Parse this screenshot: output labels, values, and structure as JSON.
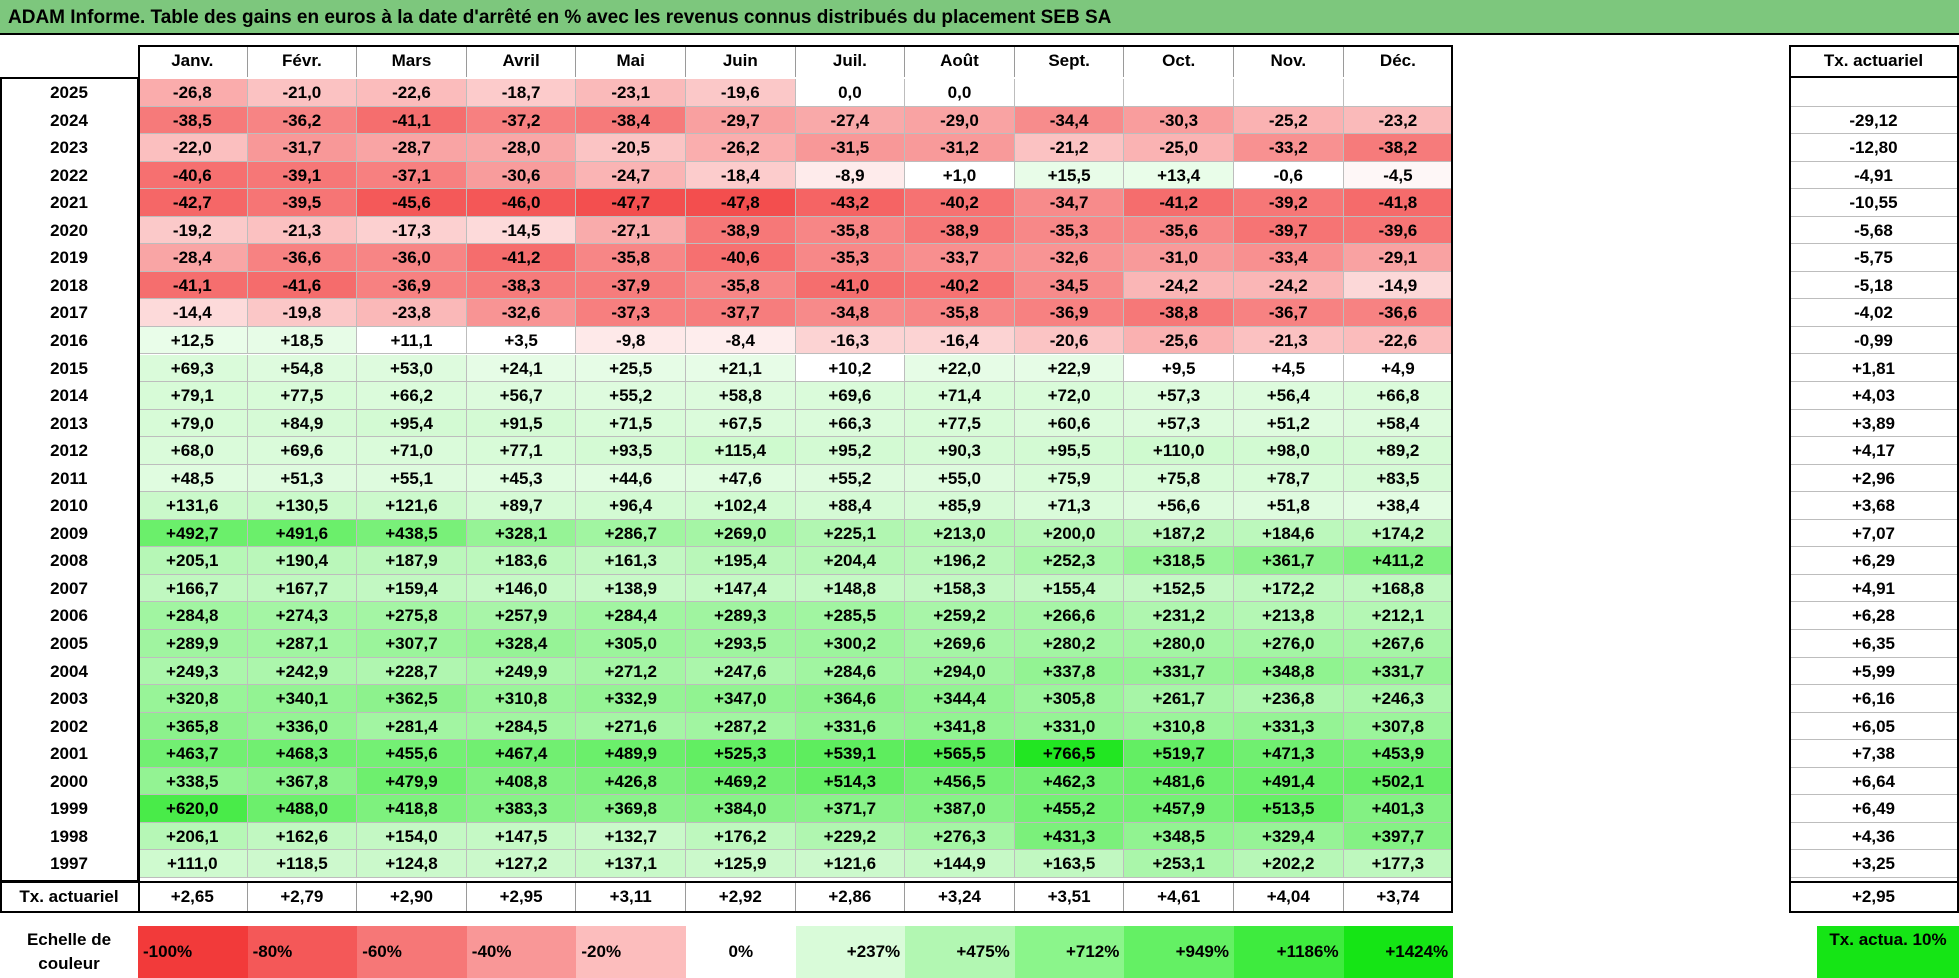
{
  "title": "ADAM Informe. Table des gains en euros à la date d'arrêté en % avec les revenus connus distribués du placement SEB SA",
  "chart_data": {
    "type": "table",
    "title": "ADAM Informe. Table des gains en euros à la date d'arrêté en % avec les revenus connus distribués du placement SEB SA",
    "months": [
      "Janv.",
      "Févr.",
      "Mars",
      "Avril",
      "Mai",
      "Juin",
      "Juil.",
      "Août",
      "Sept.",
      "Oct.",
      "Nov.",
      "Déc."
    ],
    "rate_header": "Tx. actuariel",
    "rows": [
      {
        "year": "2025",
        "values": [
          "-26,8",
          "-21,0",
          "-22,6",
          "-18,7",
          "-23,1",
          "-19,6",
          "0,0",
          "0,0",
          "",
          "",
          "",
          ""
        ],
        "rate": ""
      },
      {
        "year": "2024",
        "values": [
          "-38,5",
          "-36,2",
          "-41,1",
          "-37,2",
          "-38,4",
          "-29,7",
          "-27,4",
          "-29,0",
          "-34,4",
          "-30,3",
          "-25,2",
          "-23,2"
        ],
        "rate": "-29,12"
      },
      {
        "year": "2023",
        "values": [
          "-22,0",
          "-31,7",
          "-28,7",
          "-28,0",
          "-20,5",
          "-26,2",
          "-31,5",
          "-31,2",
          "-21,2",
          "-25,0",
          "-33,2",
          "-38,2"
        ],
        "rate": "-12,80"
      },
      {
        "year": "2022",
        "values": [
          "-40,6",
          "-39,1",
          "-37,1",
          "-30,6",
          "-24,7",
          "-18,4",
          "-8,9",
          "+1,0",
          "+15,5",
          "+13,4",
          "-0,6",
          "-4,5"
        ],
        "rate": "-4,91"
      },
      {
        "year": "2021",
        "values": [
          "-42,7",
          "-39,5",
          "-45,6",
          "-46,0",
          "-47,7",
          "-47,8",
          "-43,2",
          "-40,2",
          "-34,7",
          "-41,2",
          "-39,2",
          "-41,8"
        ],
        "rate": "-10,55"
      },
      {
        "year": "2020",
        "values": [
          "-19,2",
          "-21,3",
          "-17,3",
          "-14,5",
          "-27,1",
          "-38,9",
          "-35,8",
          "-38,9",
          "-35,3",
          "-35,6",
          "-39,7",
          "-39,6"
        ],
        "rate": "-5,68"
      },
      {
        "year": "2019",
        "values": [
          "-28,4",
          "-36,6",
          "-36,0",
          "-41,2",
          "-35,8",
          "-40,6",
          "-35,3",
          "-33,7",
          "-32,6",
          "-31,0",
          "-33,4",
          "-29,1"
        ],
        "rate": "-5,75"
      },
      {
        "year": "2018",
        "values": [
          "-41,1",
          "-41,6",
          "-36,9",
          "-38,3",
          "-37,9",
          "-35,8",
          "-41,0",
          "-40,2",
          "-34,5",
          "-24,2",
          "-24,2",
          "-14,9"
        ],
        "rate": "-5,18"
      },
      {
        "year": "2017",
        "values": [
          "-14,4",
          "-19,8",
          "-23,8",
          "-32,6",
          "-37,3",
          "-37,7",
          "-34,8",
          "-35,8",
          "-36,9",
          "-38,8",
          "-36,7",
          "-36,6"
        ],
        "rate": "-4,02"
      },
      {
        "year": "2016",
        "values": [
          "+12,5",
          "+18,5",
          "+11,1",
          "+3,5",
          "-9,8",
          "-8,4",
          "-16,3",
          "-16,4",
          "-20,6",
          "-25,6",
          "-21,3",
          "-22,6"
        ],
        "rate": "-0,99"
      },
      {
        "year": "2015",
        "values": [
          "+69,3",
          "+54,8",
          "+53,0",
          "+24,1",
          "+25,5",
          "+21,1",
          "+10,2",
          "+22,0",
          "+22,9",
          "+9,5",
          "+4,5",
          "+4,9"
        ],
        "rate": "+1,81"
      },
      {
        "year": "2014",
        "values": [
          "+79,1",
          "+77,5",
          "+66,2",
          "+56,7",
          "+55,2",
          "+58,8",
          "+69,6",
          "+71,4",
          "+72,0",
          "+57,3",
          "+56,4",
          "+66,8"
        ],
        "rate": "+4,03"
      },
      {
        "year": "2013",
        "values": [
          "+79,0",
          "+84,9",
          "+95,4",
          "+91,5",
          "+71,5",
          "+67,5",
          "+66,3",
          "+77,5",
          "+60,6",
          "+57,3",
          "+51,2",
          "+58,4"
        ],
        "rate": "+3,89"
      },
      {
        "year": "2012",
        "values": [
          "+68,0",
          "+69,6",
          "+71,0",
          "+77,1",
          "+93,5",
          "+115,4",
          "+95,2",
          "+90,3",
          "+95,5",
          "+110,0",
          "+98,0",
          "+89,2"
        ],
        "rate": "+4,17"
      },
      {
        "year": "2011",
        "values": [
          "+48,5",
          "+51,3",
          "+55,1",
          "+45,3",
          "+44,6",
          "+47,6",
          "+55,2",
          "+55,0",
          "+75,9",
          "+75,8",
          "+78,7",
          "+83,5"
        ],
        "rate": "+2,96"
      },
      {
        "year": "2010",
        "values": [
          "+131,6",
          "+130,5",
          "+121,6",
          "+89,7",
          "+96,4",
          "+102,4",
          "+88,4",
          "+85,9",
          "+71,3",
          "+56,6",
          "+51,8",
          "+38,4"
        ],
        "rate": "+3,68"
      },
      {
        "year": "2009",
        "values": [
          "+492,7",
          "+491,6",
          "+438,5",
          "+328,1",
          "+286,7",
          "+269,0",
          "+225,1",
          "+213,0",
          "+200,0",
          "+187,2",
          "+184,6",
          "+174,2"
        ],
        "rate": "+7,07"
      },
      {
        "year": "2008",
        "values": [
          "+205,1",
          "+190,4",
          "+187,9",
          "+183,6",
          "+161,3",
          "+195,4",
          "+204,4",
          "+196,2",
          "+252,3",
          "+318,5",
          "+361,7",
          "+411,2"
        ],
        "rate": "+6,29"
      },
      {
        "year": "2007",
        "values": [
          "+166,7",
          "+167,7",
          "+159,4",
          "+146,0",
          "+138,9",
          "+147,4",
          "+148,8",
          "+158,3",
          "+155,4",
          "+152,5",
          "+172,2",
          "+168,8"
        ],
        "rate": "+4,91"
      },
      {
        "year": "2006",
        "values": [
          "+284,8",
          "+274,3",
          "+275,8",
          "+257,9",
          "+284,4",
          "+289,3",
          "+285,5",
          "+259,2",
          "+266,6",
          "+231,2",
          "+213,8",
          "+212,1"
        ],
        "rate": "+6,28"
      },
      {
        "year": "2005",
        "values": [
          "+289,9",
          "+287,1",
          "+307,7",
          "+328,4",
          "+305,0",
          "+293,5",
          "+300,2",
          "+269,6",
          "+280,2",
          "+280,0",
          "+276,0",
          "+267,6"
        ],
        "rate": "+6,35"
      },
      {
        "year": "2004",
        "values": [
          "+249,3",
          "+242,9",
          "+228,7",
          "+249,9",
          "+271,2",
          "+247,6",
          "+284,6",
          "+294,0",
          "+337,8",
          "+331,7",
          "+348,8",
          "+331,7"
        ],
        "rate": "+5,99"
      },
      {
        "year": "2003",
        "values": [
          "+320,8",
          "+340,1",
          "+362,5",
          "+310,8",
          "+332,9",
          "+347,0",
          "+364,6",
          "+344,4",
          "+305,8",
          "+261,7",
          "+236,8",
          "+246,3"
        ],
        "rate": "+6,16"
      },
      {
        "year": "2002",
        "values": [
          "+365,8",
          "+336,0",
          "+281,4",
          "+284,5",
          "+271,6",
          "+287,2",
          "+331,6",
          "+341,8",
          "+331,0",
          "+310,8",
          "+331,3",
          "+307,8"
        ],
        "rate": "+6,05"
      },
      {
        "year": "2001",
        "values": [
          "+463,7",
          "+468,3",
          "+455,6",
          "+467,4",
          "+489,9",
          "+525,3",
          "+539,1",
          "+565,5",
          "+766,5",
          "+519,7",
          "+471,3",
          "+453,9"
        ],
        "rate": "+7,38"
      },
      {
        "year": "2000",
        "values": [
          "+338,5",
          "+367,8",
          "+479,9",
          "+408,8",
          "+426,8",
          "+469,2",
          "+514,3",
          "+456,5",
          "+462,3",
          "+481,6",
          "+491,4",
          "+502,1"
        ],
        "rate": "+6,64"
      },
      {
        "year": "1999",
        "values": [
          "+620,0",
          "+488,0",
          "+418,8",
          "+383,3",
          "+369,8",
          "+384,0",
          "+371,7",
          "+387,0",
          "+455,2",
          "+457,9",
          "+513,5",
          "+401,3"
        ],
        "rate": "+6,49"
      },
      {
        "year": "1998",
        "values": [
          "+206,1",
          "+162,6",
          "+154,0",
          "+147,5",
          "+132,7",
          "+176,2",
          "+229,2",
          "+276,3",
          "+431,3",
          "+348,5",
          "+329,4",
          "+397,7"
        ],
        "rate": "+4,36"
      },
      {
        "year": "1997",
        "values": [
          "+111,0",
          "+118,5",
          "+124,8",
          "+127,2",
          "+137,1",
          "+125,9",
          "+121,6",
          "+144,9",
          "+163,5",
          "+253,1",
          "+202,2",
          "+177,3"
        ],
        "rate": "+3,25"
      }
    ],
    "footer_label": "Tx. actuariel",
    "footer_values": [
      "+2,65",
      "+2,79",
      "+2,90",
      "+2,95",
      "+3,11",
      "+2,92",
      "+2,86",
      "+3,24",
      "+3,51",
      "+4,61",
      "+4,04",
      "+3,74"
    ],
    "footer_rate": "+2,95",
    "scale_label": "Echelle de couleur",
    "scale": [
      {
        "label": "-100%",
        "color": "#f23a3a"
      },
      {
        "label": "-80%",
        "color": "#f45858"
      },
      {
        "label": "-60%",
        "color": "#f67777"
      },
      {
        "label": "-40%",
        "color": "#f99797"
      },
      {
        "label": "-20%",
        "color": "#fcbdbd"
      },
      {
        "label": "0%",
        "color": "#ffffff"
      },
      {
        "label": "+237%",
        "color": "#d9fbd9"
      },
      {
        "label": "+475%",
        "color": "#b2f7b2"
      },
      {
        "label": "+712%",
        "color": "#8bf58b"
      },
      {
        "label": "+949%",
        "color": "#64f064"
      },
      {
        "label": "+1186%",
        "color": "#3eeb3e"
      },
      {
        "label": "+1424%",
        "color": "#15e515"
      }
    ],
    "scale_rate_label": "Tx. actua. 10%",
    "scale_rate_color": "#15e515",
    "colors": {
      "neg_max": "#f23a3a",
      "pos_max": "#15e515",
      "title_bg": "#7dc77d"
    }
  }
}
